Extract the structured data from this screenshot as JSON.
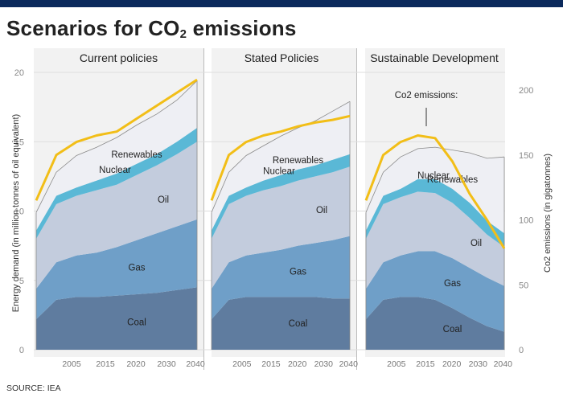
{
  "header": {
    "title_main": "Scenarios for CO",
    "title_sub": "2",
    "title_rest": " emissions"
  },
  "source": "SOURCE: IEA",
  "colors": {
    "coal": "#5f7c9f",
    "gas": "#6f9fc8",
    "oil": "#c3ccdd",
    "nuclear": "#5ab8d6",
    "renewables": "#eeeff4",
    "co2": "#f2be17",
    "outline": "#8a8a8a",
    "panel_bg": "#f2f2f2"
  },
  "chart_data": {
    "type": "area",
    "title": "Scenarios for CO2 emissions",
    "ylabel": "Energy demand (in million tonnes of oil equivalent)",
    "y2label": "Co2 emissions (in gigatonnes)",
    "ylim": [
      0,
      20
    ],
    "y2lim": [
      0,
      200
    ],
    "yticks": [
      "0",
      "5",
      "10",
      "15",
      "20"
    ],
    "y2ticks": [
      "0",
      "50",
      "100",
      "150",
      "200"
    ],
    "xtick_labels": [
      "2005",
      "2015",
      "2020",
      "2030",
      "2040"
    ],
    "x": [
      2000,
      2005,
      2010,
      2015,
      2020,
      2025,
      2030,
      2035,
      2040
    ],
    "series_names": [
      "Coal",
      "Gas",
      "Oil",
      "Nuclear",
      "Renewables"
    ],
    "annotation": "Co2 emissions:",
    "panels": [
      {
        "title": "Current policies",
        "stacked": {
          "Coal": [
            2.2,
            3.6,
            3.8,
            3.8,
            3.9,
            4.0,
            4.1,
            4.3,
            4.5
          ],
          "Gas": [
            2.2,
            2.7,
            3.0,
            3.2,
            3.5,
            3.9,
            4.3,
            4.6,
            4.9
          ],
          "Oil": [
            3.6,
            4.2,
            4.3,
            4.5,
            4.5,
            4.7,
            4.9,
            5.2,
            5.6
          ],
          "Nuclear": [
            0.6,
            0.6,
            0.6,
            0.7,
            0.8,
            0.8,
            0.8,
            0.9,
            1.0
          ],
          "Renewables": [
            1.3,
            1.7,
            2.3,
            2.4,
            2.6,
            2.8,
            2.9,
            3.0,
            3.4
          ]
        },
        "co2": [
          115,
          150,
          160,
          165,
          168,
          178,
          188,
          198,
          208
        ],
        "labels": {
          "Renewables": "Renewables",
          "Nuclear": "Nuclear",
          "Oil": "Oil",
          "Gas": "Gas",
          "Coal": "Coal"
        }
      },
      {
        "title": "Stated Policies",
        "stacked": {
          "Coal": [
            2.2,
            3.6,
            3.8,
            3.8,
            3.8,
            3.8,
            3.8,
            3.7,
            3.7
          ],
          "Gas": [
            2.2,
            2.7,
            3.0,
            3.2,
            3.4,
            3.7,
            3.9,
            4.2,
            4.5
          ],
          "Oil": [
            3.6,
            4.2,
            4.3,
            4.5,
            4.6,
            4.7,
            4.8,
            4.9,
            5.0
          ],
          "Nuclear": [
            0.6,
            0.6,
            0.6,
            0.7,
            0.8,
            0.8,
            0.8,
            0.9,
            0.9
          ],
          "Renewables": [
            1.3,
            1.7,
            2.3,
            2.5,
            2.8,
            3.0,
            3.2,
            3.5,
            3.8
          ]
        },
        "co2": [
          115,
          150,
          160,
          165,
          168,
          172,
          175,
          177,
          180
        ],
        "labels": {
          "Renewables": "Renewables",
          "Nuclear": "Nuclear",
          "Oil": "Oil",
          "Gas": "Gas",
          "Coal": "Coal"
        }
      },
      {
        "title": "Sustainable Development",
        "stacked": {
          "Coal": [
            2.2,
            3.6,
            3.8,
            3.8,
            3.6,
            3.0,
            2.3,
            1.7,
            1.3
          ],
          "Gas": [
            2.2,
            2.7,
            3.0,
            3.3,
            3.5,
            3.6,
            3.6,
            3.5,
            3.3
          ],
          "Oil": [
            3.6,
            4.2,
            4.2,
            4.3,
            4.2,
            4.0,
            3.6,
            3.1,
            2.8
          ],
          "Nuclear": [
            0.6,
            0.6,
            0.6,
            0.9,
            1.0,
            1.0,
            1.1,
            1.0,
            1.0
          ],
          "Renewables": [
            1.3,
            1.7,
            2.3,
            2.2,
            2.3,
            2.8,
            3.6,
            4.5,
            5.5
          ]
        },
        "co2": [
          115,
          150,
          160,
          165,
          163,
          145,
          120,
          100,
          78
        ],
        "labels": {
          "Renewables": "Renewables",
          "Nuclear": "Nuclear",
          "Oil": "Oil",
          "Gas": "Gas",
          "Coal": "Coal"
        }
      }
    ]
  }
}
